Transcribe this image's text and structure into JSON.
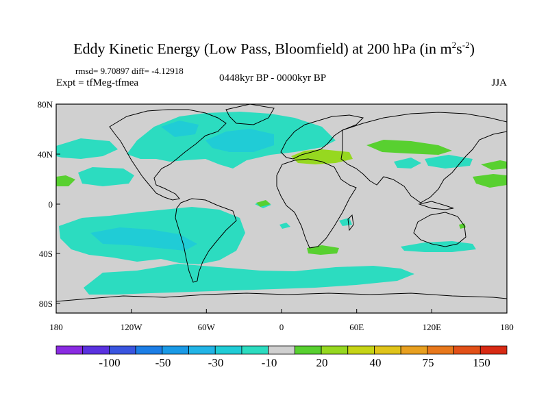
{
  "title": {
    "prefix": "Eddy Kinetic Energy (Low Pass, Bloomfield) at 200 hPa (in m",
    "sup1": "2",
    "mid": "s",
    "sup2": "-2",
    "suffix": ")"
  },
  "stats": {
    "rmsd_label": "rmsd=",
    "rmsd": "9.70897",
    "diff_label": "diff=",
    "diff": "-4.12918"
  },
  "experiment": "Expt = tfMeg-tfmea",
  "period": "0448kyr BP - 0000kyr BP",
  "season": "JJA",
  "map": {
    "background_color": "#d0d0d0",
    "lat_labels": [
      "80N",
      "40N",
      "0",
      "40S",
      "80S"
    ],
    "lon_labels": [
      "180",
      "120W",
      "60W",
      "0",
      "60E",
      "120E",
      "180"
    ]
  },
  "colorbar": {
    "colors": [
      "#8a2be2",
      "#5a32e0",
      "#3a55e0",
      "#1c7ee6",
      "#1a9ae6",
      "#22b4e6",
      "#20ccd6",
      "#2cdcc0",
      "#d0d0d0",
      "#58d030",
      "#96d820",
      "#c6d416",
      "#e0c41a",
      "#e8a020",
      "#e8781c",
      "#e25018",
      "#d82a14"
    ],
    "labels": [
      "-100",
      "-50",
      "-30",
      "-10",
      "20",
      "40",
      "75",
      "150"
    ]
  }
}
